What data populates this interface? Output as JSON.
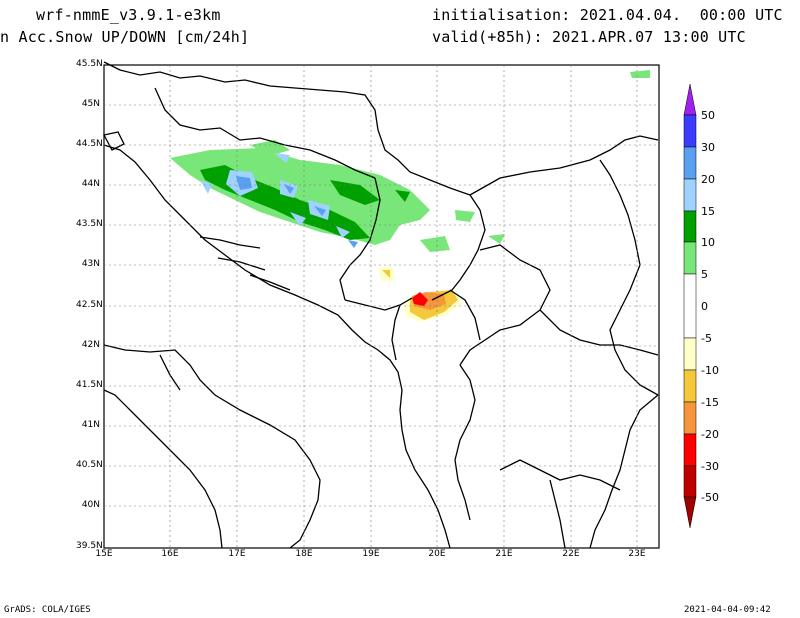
{
  "header": {
    "model": "wrf-nmmE_v3.9.1-e3km",
    "field": "n Acc.Snow UP/DOWN [cm/24h]",
    "init": "initialisation: 2021.04.04.  00:00 UTC",
    "valid": "valid(+85h): 2021.APR.07 13:00 UTC"
  },
  "footer": {
    "left": "GrADS: COLA/IGES",
    "right": "2021-04-04-09:42"
  },
  "axes": {
    "lat_labels": [
      "45.5N",
      "45N",
      "44.5N",
      "44N",
      "43.5N",
      "43N",
      "42.5N",
      "42N",
      "41.5N",
      "41N",
      "40.5N",
      "40N",
      "39.5N"
    ],
    "lon_labels": [
      "15E",
      "16E",
      "17E",
      "18E",
      "19E",
      "20E",
      "21E",
      "22E",
      "23E"
    ]
  },
  "colorbar": {
    "labels": [
      "50",
      "30",
      "20",
      "15",
      "10",
      "5",
      "0",
      "-5",
      "-10",
      "-15",
      "-20",
      "-30",
      "-50"
    ],
    "colors": [
      "#a020f0",
      "#3c3cff",
      "#5aa0f0",
      "#a0d2ff",
      "#00a000",
      "#78e678",
      "#ffffff",
      "#ffffc8",
      "#f5c83c",
      "#f5963c",
      "#ff0000",
      "#c00000",
      "#a00000"
    ]
  }
}
